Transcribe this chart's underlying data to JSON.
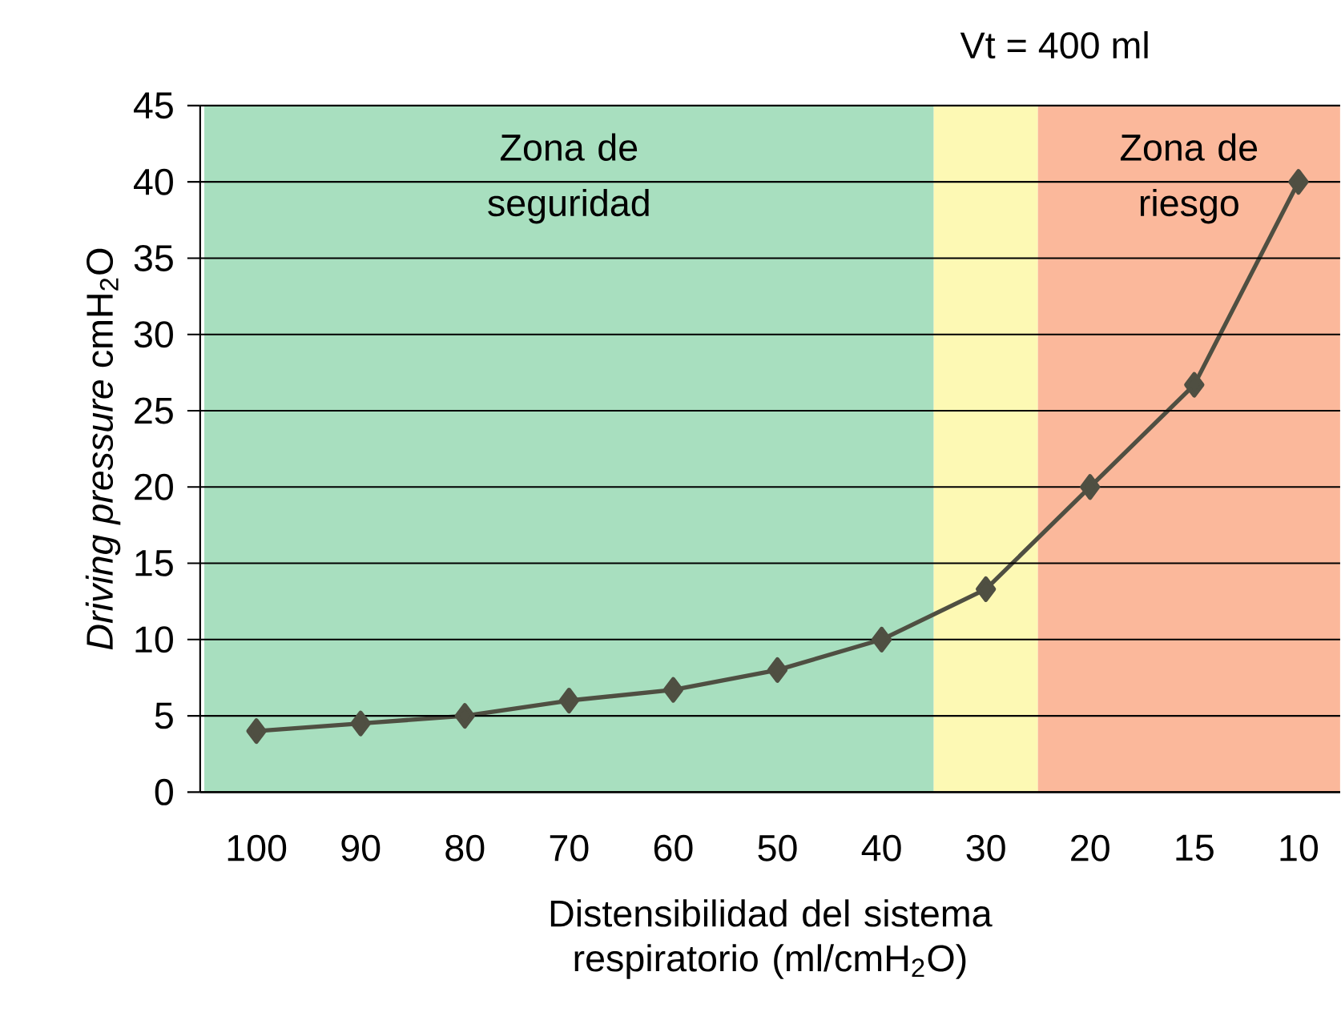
{
  "chart_data": {
    "type": "line",
    "title": "Vt = 400 ml",
    "xlabel": "Distensibilidad del sistema respiratorio (ml/cmH$_{2}$O)",
    "ylabel": "*Driving pressure* cmH$_{2}$O",
    "categories": [
      "100",
      "90",
      "80",
      "70",
      "60",
      "50",
      "40",
      "30",
      "20",
      "15",
      "10"
    ],
    "series": [
      {
        "color": "#4f4f42",
        "values": [
          4,
          4.5,
          5,
          6,
          6.7,
          8,
          10,
          13.3,
          20,
          26.7,
          40
        ]
      }
    ],
    "ylim": [
      0,
      45
    ],
    "yticks": [
      0,
      5,
      10,
      15,
      20,
      25,
      30,
      35,
      40,
      45
    ],
    "grid": "y",
    "marker": "diamond",
    "line_style": "solid",
    "bands": [
      {
        "axis": "x",
        "from": "100",
        "to": "40",
        "label": "Zona de seguridad",
        "color": "#a8dfbf"
      },
      {
        "axis": "x",
        "from": "30",
        "to": "30",
        "color": "#fdf9b4"
      },
      {
        "axis": "x",
        "from": "20",
        "to": "10",
        "label": "Zona de riesgo",
        "color": "#fbb89b"
      }
    ]
  }
}
